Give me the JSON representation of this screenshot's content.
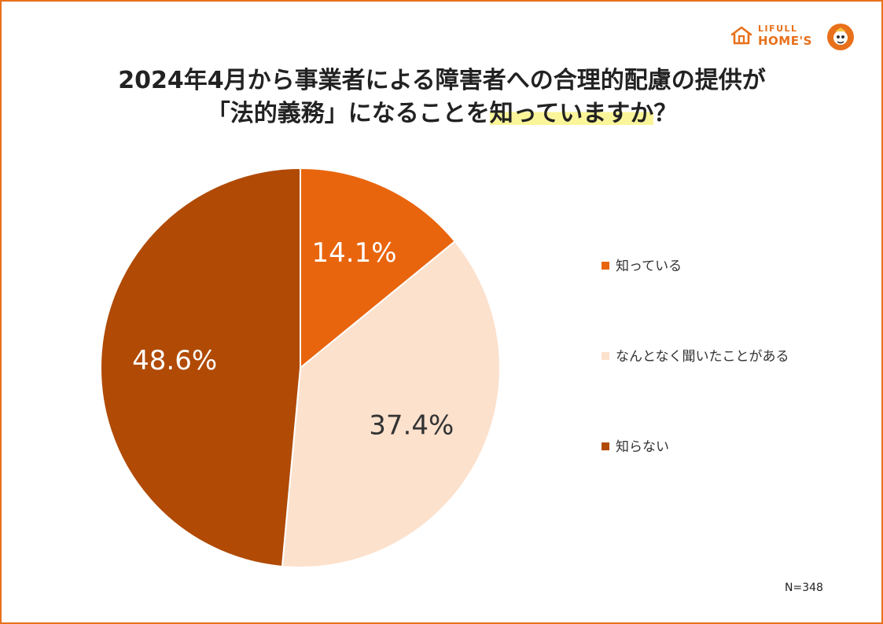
{
  "header": {
    "brand_small": "LIFULL",
    "brand_large": "HOME'S"
  },
  "title": {
    "line1": "2024年4月から事業者による障害者への合理的配慮の提供が",
    "line2_before": "「法的義務」になることを",
    "line2_highlight": "知っていますか",
    "line2_after": "？"
  },
  "chart_data": {
    "type": "pie",
    "title": "2024年4月から事業者による障害者への合理的配慮の提供が「法的義務」になることを知っていますか？",
    "categories": [
      "知っている",
      "なんとなく聞いたことがある",
      "知らない"
    ],
    "values": [
      14.1,
      37.4,
      48.6
    ],
    "labels": [
      "14.1%",
      "37.4%",
      "48.6%"
    ],
    "colors": [
      "#e8650e",
      "#fce1cd",
      "#b04a05"
    ],
    "label_colors": [
      "#ffffff",
      "#333333",
      "#ffffff"
    ],
    "start_angle": "12 o'clock",
    "direction": "clockwise",
    "legend_position": "right",
    "note": "N=348"
  },
  "colors": {
    "frame": "#e8701a",
    "accent": "#e8701a",
    "highlight": "#fbf59a",
    "text": "#222222"
  }
}
